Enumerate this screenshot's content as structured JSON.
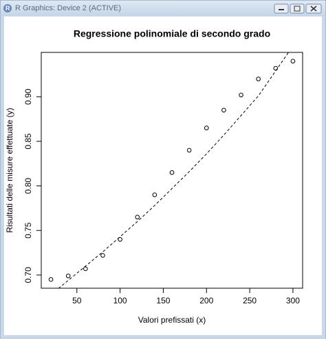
{
  "window": {
    "title": "R Graphics: Device 2 (ACTIVE)"
  },
  "chart_data": {
    "type": "scatter",
    "title": "Regressione polinomiale di secondo grado",
    "xlabel": "Valori prefissati (x)",
    "ylabel": "Risultati delle misure effettuate (y)",
    "x": [
      20,
      40,
      60,
      80,
      100,
      120,
      140,
      160,
      180,
      200,
      220,
      240,
      260,
      280,
      300
    ],
    "series": [
      {
        "color": "#000000",
        "marker": "circle",
        "values": [
          0.695,
          0.699,
          0.707,
          0.722,
          0.74,
          0.765,
          0.79,
          0.815,
          0.84,
          0.865,
          0.885,
          0.902,
          0.92,
          0.932,
          0.94
        ]
      },
      {
        "color": "#000000",
        "style": "dashed",
        "values": [
          0.678,
          0.694,
          0.71,
          0.726,
          0.743,
          0.76,
          0.778,
          0.797,
          0.816,
          0.836,
          0.857,
          0.879,
          0.901,
          0.929,
          0.957
        ]
      }
    ],
    "xlim": [
      8.8,
      311.2
    ],
    "xticks": [
      50,
      100,
      150,
      200,
      250,
      300
    ],
    "ylim": [
      0.6852,
      0.9498
    ],
    "yticks": [
      {
        "value": 0.7,
        "label": "0.70"
      },
      0.75,
      {
        "value": 0.8,
        "label": "0.80"
      },
      0.85,
      {
        "value": 0.9,
        "label": "0.90"
      }
    ]
  }
}
